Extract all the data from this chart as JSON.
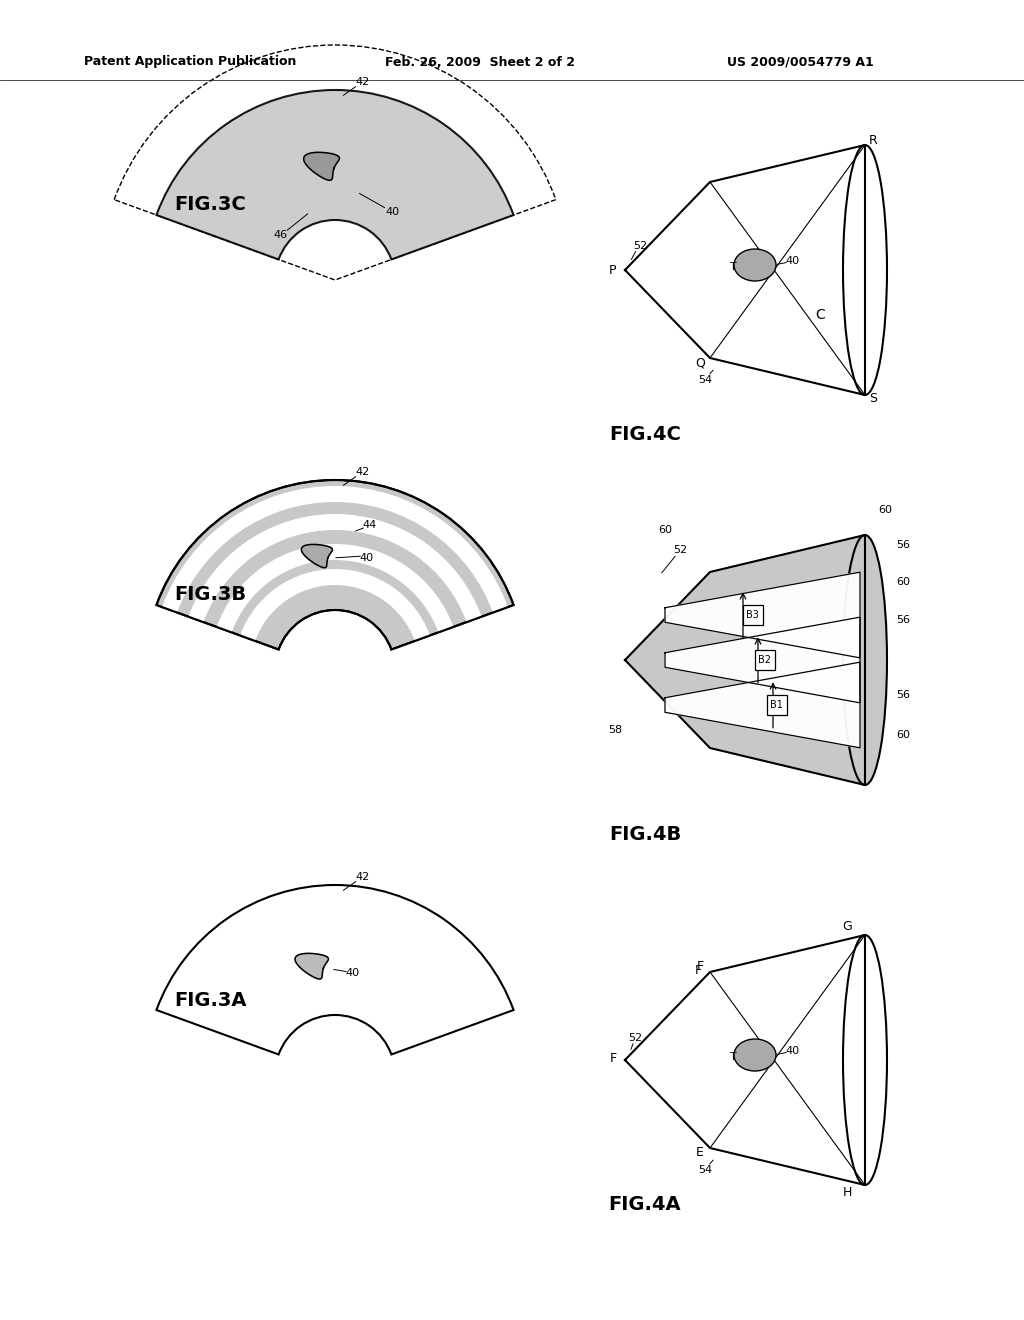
{
  "header_left": "Patent Application Publication",
  "header_mid": "Feb. 26, 2009  Sheet 2 of 2",
  "header_right": "US 2009/0054779 A1",
  "bg_color": "#ffffff",
  "line_color": "#000000",
  "dot_fill": "#cccccc",
  "dark_dot_fill": "#999999",
  "fig_labels": [
    "FIG.3A",
    "FIG.3B",
    "FIG.3C",
    "FIG.4A",
    "FIG.4B",
    "FIG.4C"
  ]
}
